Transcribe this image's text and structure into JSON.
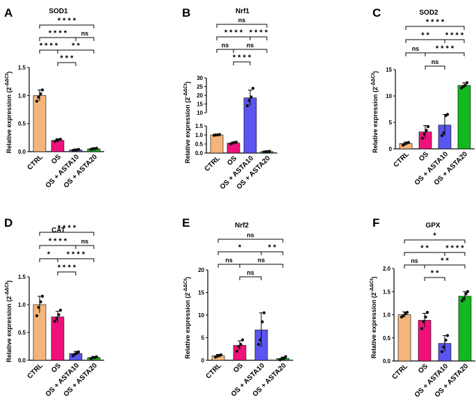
{
  "figure": {
    "title": "Six-panel relative expression bar charts"
  },
  "colors": {
    "CTRL": "#f5b57a",
    "OS": "#f0127a",
    "OS + ASTA10": "#5a55f0",
    "OS + ASTA20": "#12b81e",
    "axis": "#000000",
    "dot": "#111111"
  },
  "chart_data": [
    {
      "panel": "A",
      "type": "bar",
      "title": "SOD1",
      "ylabel": "Relative expression (2^-ΔΔCt)",
      "categories": [
        "CTRL",
        "OS",
        "OS + ASTA10",
        "OS + ASTA20"
      ],
      "values": [
        1.0,
        0.2,
        0.03,
        0.05
      ],
      "errors": [
        0.1,
        0.03,
        0.01,
        0.02
      ],
      "points": [
        [
          0.9,
          0.97,
          1.03,
          1.1
        ],
        [
          0.18,
          0.2,
          0.21,
          0.22
        ],
        [
          0.02,
          0.03,
          0.03,
          0.04
        ],
        [
          0.04,
          0.05,
          0.05,
          0.06
        ]
      ],
      "ylim": [
        0,
        1.5
      ],
      "yticks": [
        0,
        0.5,
        1.0,
        1.5
      ],
      "ytick_labels": [
        "0.0",
        "0.5",
        "1.0",
        "1.5"
      ],
      "sig": [
        {
          "pair": [
            0,
            3
          ],
          "label": "* * * *"
        },
        {
          "pair": [
            1,
            3
          ],
          "label": "* *"
        },
        {
          "pair": [
            0,
            2
          ],
          "label": "* * * *"
        },
        {
          "pair": [
            1,
            2
          ],
          "label": "* * *"
        },
        {
          "pair": [
            0,
            1
          ],
          "label": "* * * *"
        },
        {
          "pair": [
            2,
            3
          ],
          "label": "ns"
        }
      ]
    },
    {
      "panel": "B",
      "type": "bar",
      "title": "Nrf1",
      "ylabel": "Relative expression (2^-ΔΔCt)",
      "categories": [
        "CTRL",
        "OS",
        "OS + ASTA10",
        "OS + ASTA20"
      ],
      "values": [
        1.0,
        0.55,
        18.5,
        0.08
      ],
      "errors": [
        0.02,
        0.06,
        4.5,
        0.02
      ],
      "points": [
        [
          0.98,
          1.0,
          1.0,
          1.02
        ],
        [
          0.5,
          0.55,
          0.58,
          0.6
        ],
        [
          14,
          17,
          19,
          24
        ],
        [
          0.06,
          0.07,
          0.08,
          0.09
        ]
      ],
      "broken_axis": {
        "lower": [
          0,
          1.5
        ],
        "upper": [
          10,
          30
        ]
      },
      "yticks_lower": [
        0,
        0.5,
        1.0,
        1.5
      ],
      "ytick_labels_lower": [
        "0.0",
        "0.5",
        "1.0",
        "1.5"
      ],
      "yticks_upper": [
        10,
        15,
        20,
        25,
        30
      ],
      "ytick_labels_upper": [
        "10",
        "15",
        "20",
        "25",
        "30"
      ],
      "sig": [
        {
          "pair": [
            0,
            3
          ],
          "label": "ns"
        },
        {
          "pair": [
            1,
            3
          ],
          "label": "ns"
        },
        {
          "pair": [
            0,
            2
          ],
          "label": "* * * *"
        },
        {
          "pair": [
            1,
            2
          ],
          "label": "* * * *"
        },
        {
          "pair": [
            0,
            1
          ],
          "label": "ns"
        },
        {
          "pair": [
            2,
            3
          ],
          "label": "* * * *"
        }
      ]
    },
    {
      "panel": "C",
      "type": "bar",
      "title": "SOD2",
      "ylabel": "Relative expression (2^-ΔΔCt)",
      "categories": [
        "CTRL",
        "OS",
        "OS + ASTA10",
        "OS + ASTA20"
      ],
      "values": [
        1.0,
        3.2,
        4.5,
        12.0
      ],
      "errors": [
        0.3,
        1.2,
        2.0,
        0.5
      ],
      "points": [
        [
          0.7,
          0.9,
          1.1,
          1.2
        ],
        [
          2.0,
          2.8,
          3.5,
          4.2
        ],
        [
          2.5,
          3.0,
          6.3,
          6.5
        ],
        [
          11.5,
          11.8,
          12.0,
          12.5
        ]
      ],
      "ylim": [
        0,
        15
      ],
      "yticks": [
        0,
        5,
        10,
        15
      ],
      "ytick_labels": [
        "0",
        "5",
        "10",
        "15"
      ],
      "sig": [
        {
          "pair": [
            0,
            3
          ],
          "label": "* * * *"
        },
        {
          "pair": [
            1,
            3
          ],
          "label": "* * * *"
        },
        {
          "pair": [
            0,
            2
          ],
          "label": "* *"
        },
        {
          "pair": [
            2,
            3
          ],
          "label": "* * * *"
        },
        {
          "pair": [
            0,
            1
          ],
          "label": "ns"
        },
        {
          "pair": [
            1,
            2
          ],
          "label": "ns"
        }
      ]
    },
    {
      "panel": "D",
      "type": "bar",
      "title": "CAT",
      "ylabel": "Relative expression (2^-ΔΔCt)",
      "categories": [
        "CTRL",
        "OS",
        "OS + ASTA10",
        "OS + ASTA20"
      ],
      "values": [
        1.0,
        0.78,
        0.12,
        0.05
      ],
      "errors": [
        0.15,
        0.1,
        0.04,
        0.02
      ],
      "points": [
        [
          0.8,
          0.95,
          1.05,
          1.15
        ],
        [
          0.7,
          0.75,
          0.82,
          0.9
        ],
        [
          0.08,
          0.11,
          0.13,
          0.15
        ],
        [
          0.03,
          0.05,
          0.05,
          0.06
        ]
      ],
      "ylim": [
        0,
        1.5
      ],
      "yticks": [
        0,
        0.5,
        1.0,
        1.5
      ],
      "ytick_labels": [
        "0.0",
        "0.5",
        "1.0",
        "1.5"
      ],
      "sig": [
        {
          "pair": [
            0,
            3
          ],
          "label": "* * * *"
        },
        {
          "pair": [
            1,
            3
          ],
          "label": "* * * *"
        },
        {
          "pair": [
            0,
            2
          ],
          "label": "* * * *"
        },
        {
          "pair": [
            1,
            2
          ],
          "label": "* * * *"
        },
        {
          "pair": [
            0,
            1
          ],
          "label": "*"
        },
        {
          "pair": [
            2,
            3
          ],
          "label": "ns"
        }
      ]
    },
    {
      "panel": "E",
      "type": "bar",
      "title": "Nrf2",
      "ylabel": "Relative expression (2^-ΔΔCt)",
      "categories": [
        "CTRL",
        "OS",
        "OS + ASTA10",
        "OS + ASTA20"
      ],
      "values": [
        1.0,
        3.3,
        6.7,
        0.4
      ],
      "errors": [
        0.3,
        1.0,
        3.8,
        0.3
      ],
      "points": [
        [
          0.7,
          0.9,
          1.0,
          1.2
        ],
        [
          2.0,
          3.0,
          3.5,
          4.5
        ],
        [
          3.5,
          4.5,
          8.5,
          10.5
        ],
        [
          0.1,
          0.3,
          0.4,
          0.8
        ]
      ],
      "ylim": [
        0,
        20
      ],
      "yticks": [
        0,
        5,
        10,
        15,
        20
      ],
      "ytick_labels": [
        "0",
        "5",
        "10",
        "15",
        "20"
      ],
      "sig": [
        {
          "pair": [
            0,
            3
          ],
          "label": "ns"
        },
        {
          "pair": [
            1,
            3
          ],
          "label": "ns"
        },
        {
          "pair": [
            0,
            2
          ],
          "label": "*"
        },
        {
          "pair": [
            0,
            1
          ],
          "label": "ns"
        },
        {
          "pair": [
            1,
            2
          ],
          "label": "ns"
        },
        {
          "pair": [
            2,
            3
          ],
          "label": "* *"
        }
      ]
    },
    {
      "panel": "F",
      "type": "bar",
      "title": "GPX",
      "ylabel": "Relative expression (2^-ΔΔCt)",
      "categories": [
        "CTRL",
        "OS",
        "OS + ASTA10",
        "OS + ASTA20"
      ],
      "values": [
        1.0,
        0.88,
        0.38,
        1.4
      ],
      "errors": [
        0.06,
        0.15,
        0.17,
        0.1
      ],
      "points": [
        [
          0.95,
          0.98,
          1.02,
          1.05
        ],
        [
          0.7,
          0.85,
          0.95,
          1.05
        ],
        [
          0.2,
          0.3,
          0.45,
          0.55
        ],
        [
          1.3,
          1.35,
          1.45,
          1.5
        ]
      ],
      "ylim": [
        0,
        2.0
      ],
      "yticks": [
        0,
        0.5,
        1.0,
        1.5,
        2.0
      ],
      "ytick_labels": [
        "0.0",
        "0.5",
        "1.0",
        "1.5",
        "2.0"
      ],
      "sig": [
        {
          "pair": [
            0,
            3
          ],
          "label": "*"
        },
        {
          "pair": [
            1,
            3
          ],
          "label": "* *"
        },
        {
          "pair": [
            0,
            2
          ],
          "label": "* *"
        },
        {
          "pair": [
            2,
            3
          ],
          "label": "* * * *"
        },
        {
          "pair": [
            0,
            1
          ],
          "label": "ns"
        },
        {
          "pair": [
            1,
            2
          ],
          "label": "* *"
        }
      ]
    }
  ]
}
